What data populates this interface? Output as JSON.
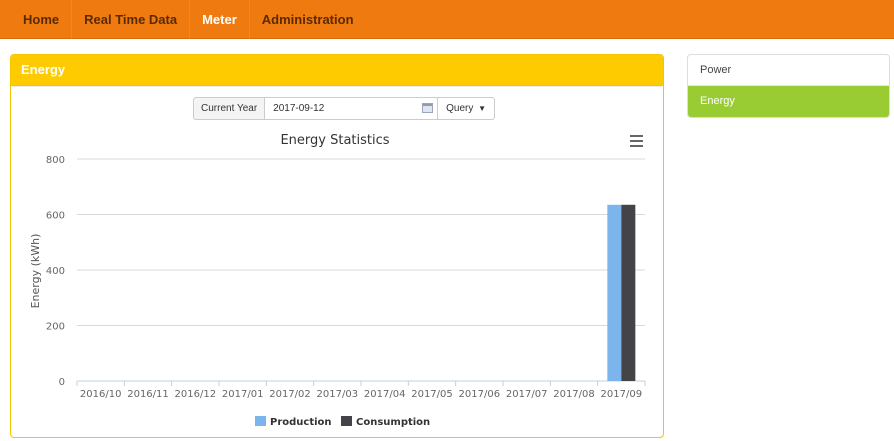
{
  "nav": {
    "items": [
      {
        "label": "Home",
        "active": false
      },
      {
        "label": "Real Time Data",
        "active": false
      },
      {
        "label": "Meter",
        "active": true
      },
      {
        "label": "Administration",
        "active": false
      }
    ]
  },
  "panel": {
    "title": "Energy"
  },
  "toolbar": {
    "period_label": "Current Year",
    "date_value": "2017-09-12",
    "query_label": "Query"
  },
  "side": {
    "items": [
      {
        "label": "Power",
        "active": false
      },
      {
        "label": "Energy",
        "active": true
      }
    ]
  },
  "colors": {
    "nav_bg": "#ef7a10",
    "panel_header": "#fecb00",
    "production": "#7cb5ec",
    "consumption": "#434348",
    "side_active": "#99cc33"
  },
  "chart_data": {
    "type": "bar",
    "title": "Energy Statistics",
    "xlabel": "",
    "ylabel": "Energy (kWh)",
    "ylim": [
      0,
      800
    ],
    "yticks": [
      0,
      200,
      400,
      600,
      800
    ],
    "categories": [
      "2016/10",
      "2016/11",
      "2016/12",
      "2017/01",
      "2017/02",
      "2017/03",
      "2017/04",
      "2017/05",
      "2017/06",
      "2017/07",
      "2017/08",
      "2017/09"
    ],
    "series": [
      {
        "name": "Production",
        "values": [
          0,
          0,
          0,
          0,
          0,
          0,
          0,
          0,
          0,
          0,
          0,
          635
        ]
      },
      {
        "name": "Consumption",
        "values": [
          0,
          0,
          0,
          0,
          0,
          0,
          0,
          0,
          0,
          0,
          0,
          635
        ]
      }
    ],
    "grid": true,
    "legend": "bottom-center"
  }
}
